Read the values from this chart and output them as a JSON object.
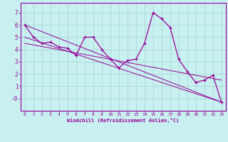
{
  "xlabel": "Windchill (Refroidissement éolien,°C)",
  "bg_color": "#c8f0f0",
  "line_color": "#990099",
  "grid_color": "#a8d8d8",
  "series": [
    [
      0,
      6.0
    ],
    [
      1,
      5.0
    ],
    [
      2,
      4.5
    ],
    [
      3,
      4.6
    ],
    [
      4,
      4.2
    ],
    [
      5,
      4.1
    ],
    [
      6,
      3.5
    ],
    [
      7,
      5.0
    ],
    [
      8,
      5.0
    ],
    [
      9,
      4.0
    ],
    [
      10,
      3.2
    ],
    [
      11,
      2.5
    ],
    [
      12,
      3.1
    ],
    [
      13,
      3.2
    ],
    [
      14,
      4.5
    ],
    [
      15,
      7.0
    ],
    [
      16,
      6.5
    ],
    [
      17,
      5.8
    ],
    [
      18,
      3.2
    ],
    [
      19,
      2.2
    ],
    [
      20,
      1.3
    ],
    [
      21,
      1.5
    ],
    [
      22,
      1.9
    ],
    [
      23,
      -0.3
    ]
  ],
  "extra_lines": [
    [
      [
        0,
        6.0
      ],
      [
        23,
        -0.3
      ]
    ],
    [
      [
        0,
        5.0
      ],
      [
        23,
        -0.3
      ]
    ],
    [
      [
        0,
        4.5
      ],
      [
        23,
        1.5
      ]
    ]
  ],
  "ylim": [
    -1.0,
    7.8
  ],
  "xlim": [
    -0.5,
    23.5
  ],
  "yticks": [
    0,
    1,
    2,
    3,
    4,
    5,
    6,
    7
  ],
  "ytick_labels": [
    "-0",
    "1",
    "2",
    "3",
    "4",
    "5",
    "6",
    "7"
  ],
  "xticks": [
    0,
    1,
    2,
    3,
    4,
    5,
    6,
    7,
    8,
    9,
    10,
    11,
    12,
    13,
    14,
    15,
    16,
    17,
    18,
    19,
    20,
    21,
    22,
    23
  ],
  "xtick_labels": [
    "0",
    "1",
    "2",
    "3",
    "4",
    "5",
    "6",
    "7",
    "8",
    "9",
    "10",
    "11",
    "12",
    "13",
    "14",
    "15",
    "16",
    "17",
    "18",
    "19",
    "20",
    "21",
    "22",
    "23"
  ]
}
